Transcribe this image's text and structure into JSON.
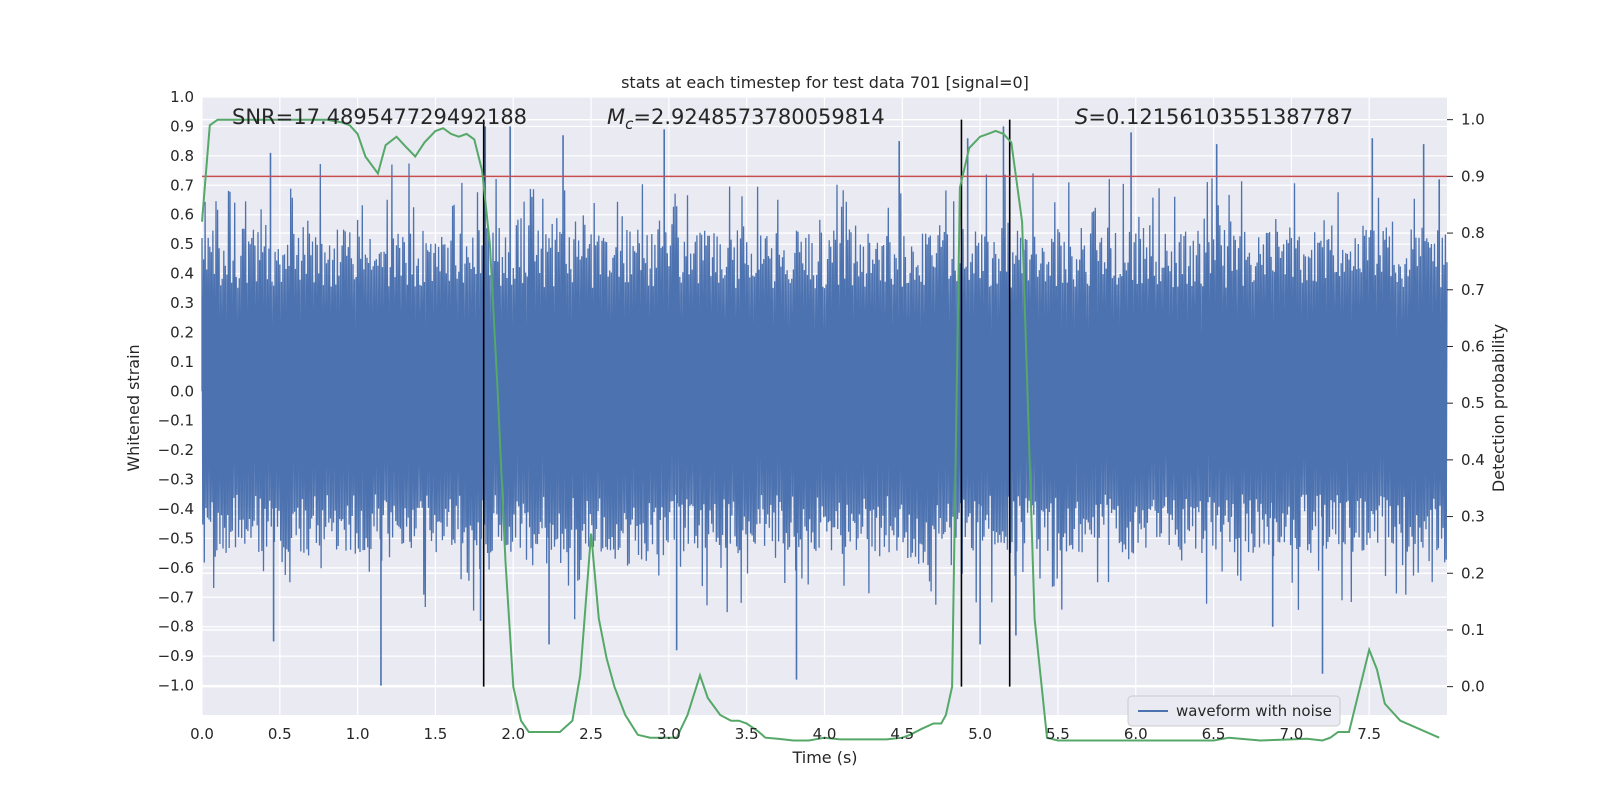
{
  "chart_data": {
    "type": "line",
    "title": "stats at each timestep for test data 701 [signal=0]",
    "xlabel": "Time (s)",
    "ylabel": "Whitened strain",
    "y2label": "Detection probability",
    "xlim": [
      0.0,
      8.0
    ],
    "ylim": [
      -1.1,
      1.0
    ],
    "y2lim": [
      -0.05,
      1.04
    ],
    "xticks": [
      "0.0",
      "0.5",
      "1.0",
      "1.5",
      "2.0",
      "2.5",
      "3.0",
      "3.5",
      "4.0",
      "4.5",
      "5.0",
      "5.5",
      "6.0",
      "6.5",
      "7.0",
      "7.5"
    ],
    "xtick_values": [
      0.0,
      0.5,
      1.0,
      1.5,
      2.0,
      2.5,
      3.0,
      3.5,
      4.0,
      4.5,
      5.0,
      5.5,
      6.0,
      6.5,
      7.0,
      7.5
    ],
    "yticks": [
      "1.0",
      "0.9",
      "0.8",
      "0.7",
      "0.6",
      "0.5",
      "0.4",
      "0.3",
      "0.2",
      "0.1",
      "0.0",
      "−0.1",
      "−0.2",
      "−0.3",
      "−0.4",
      "−0.5",
      "−0.6",
      "−0.7",
      "−0.8",
      "−0.9",
      "−1.0"
    ],
    "ytick_values": [
      1.0,
      0.9,
      0.8,
      0.7,
      0.6,
      0.5,
      0.4,
      0.3,
      0.2,
      0.1,
      0.0,
      -0.1,
      -0.2,
      -0.3,
      -0.4,
      -0.5,
      -0.6,
      -0.7,
      -0.8,
      -0.9,
      -1.0
    ],
    "y2ticks": [
      "1.0",
      "0.9",
      "0.8",
      "0.7",
      "0.6",
      "0.5",
      "0.4",
      "0.3",
      "0.2",
      "0.1",
      "0.0"
    ],
    "y2tick_values": [
      1.0,
      0.9,
      0.8,
      0.7,
      0.6,
      0.5,
      0.4,
      0.3,
      0.2,
      0.1,
      0.0
    ],
    "annotations": {
      "snr": "SNR=17.489547729492188",
      "mc_symbol": "M",
      "mc_subscript": "c",
      "mc_value": "=2.9248573780059814",
      "s_symbol": "S",
      "s_value": "=0.12156103551387787"
    },
    "threshold": {
      "value": 0.9,
      "axis": "y2",
      "color": "#c44e52"
    },
    "event_markers_x": [
      1.81,
      4.88,
      5.19
    ],
    "waveform": {
      "name": "waveform with noise",
      "color": "#4c72b0",
      "core_amplitude": 0.35,
      "max_amplitude": 0.99,
      "peaks": [
        {
          "t": 0.44,
          "v": 0.81
        },
        {
          "t": 0.46,
          "v": -0.85
        },
        {
          "t": 1.15,
          "v": -1.0
        },
        {
          "t": 1.82,
          "v": 0.9
        },
        {
          "t": 1.79,
          "v": -0.78
        },
        {
          "t": 1.98,
          "v": 0.9
        },
        {
          "t": 2.23,
          "v": -0.86
        },
        {
          "t": 2.32,
          "v": 0.87
        },
        {
          "t": 2.97,
          "v": 0.89
        },
        {
          "t": 3.05,
          "v": -0.88
        },
        {
          "t": 3.82,
          "v": -0.98
        },
        {
          "t": 4.48,
          "v": 0.85
        },
        {
          "t": 4.92,
          "v": 0.86
        },
        {
          "t": 5.0,
          "v": -0.86
        },
        {
          "t": 5.15,
          "v": 0.9
        },
        {
          "t": 5.23,
          "v": -0.83
        },
        {
          "t": 5.97,
          "v": 0.88
        },
        {
          "t": 6.52,
          "v": 0.84
        },
        {
          "t": 6.88,
          "v": -0.8
        },
        {
          "t": 7.2,
          "v": -0.96
        },
        {
          "t": 7.52,
          "v": 0.86
        },
        {
          "t": 7.85,
          "v": 0.84
        },
        {
          "t": 7.95,
          "v": 0.72
        }
      ]
    },
    "probability": {
      "color": "#55a868",
      "x": [
        0.0,
        0.05,
        0.1,
        0.2,
        0.3,
        0.4,
        0.5,
        0.6,
        0.7,
        0.8,
        0.9,
        0.95,
        1.0,
        1.05,
        1.13,
        1.18,
        1.25,
        1.3,
        1.37,
        1.43,
        1.5,
        1.55,
        1.6,
        1.65,
        1.7,
        1.75,
        1.8,
        1.85,
        1.9,
        1.95,
        2.0,
        2.05,
        2.1,
        2.15,
        2.2,
        2.25,
        2.3,
        2.38,
        2.43,
        2.5,
        2.55,
        2.6,
        2.65,
        2.72,
        2.8,
        2.88,
        2.95,
        3.0,
        3.05,
        3.12,
        3.2,
        3.25,
        3.33,
        3.4,
        3.45,
        3.5,
        3.57,
        3.62,
        3.7,
        3.8,
        3.9,
        4.0,
        4.1,
        4.2,
        4.3,
        4.4,
        4.5,
        4.55,
        4.62,
        4.7,
        4.75,
        4.78,
        4.82,
        4.87,
        4.93,
        5.0,
        5.05,
        5.1,
        5.15,
        5.2,
        5.27,
        5.35,
        5.43,
        5.5,
        5.7,
        6.0,
        6.3,
        6.5,
        6.6,
        6.8,
        7.0,
        7.1,
        7.2,
        7.25,
        7.3,
        7.37,
        7.5,
        7.55,
        7.6,
        7.7,
        7.95
      ],
      "y": [
        0.82,
        0.99,
        1.0,
        1.0,
        1.0,
        1.0,
        1.0,
        1.0,
        1.0,
        1.0,
        0.995,
        0.99,
        0.975,
        0.935,
        0.905,
        0.955,
        0.97,
        0.955,
        0.935,
        0.96,
        0.98,
        0.985,
        0.975,
        0.97,
        0.975,
        0.965,
        0.91,
        0.78,
        0.52,
        0.22,
        0.0,
        -0.06,
        -0.08,
        -0.08,
        -0.08,
        -0.08,
        -0.08,
        -0.06,
        0.02,
        0.27,
        0.12,
        0.05,
        0.0,
        -0.05,
        -0.085,
        -0.09,
        -0.09,
        -0.09,
        -0.09,
        -0.05,
        0.02,
        -0.02,
        -0.05,
        -0.06,
        -0.06,
        -0.065,
        -0.078,
        -0.09,
        -0.092,
        -0.095,
        -0.095,
        -0.09,
        -0.093,
        -0.093,
        -0.093,
        -0.093,
        -0.09,
        -0.085,
        -0.075,
        -0.065,
        -0.065,
        -0.05,
        0.0,
        0.88,
        0.95,
        0.97,
        0.975,
        0.98,
        0.975,
        0.96,
        0.82,
        0.12,
        -0.09,
        -0.095,
        -0.095,
        -0.095,
        -0.095,
        -0.095,
        -0.09,
        -0.095,
        -0.093,
        -0.092,
        -0.095,
        -0.09,
        -0.08,
        -0.08,
        0.065,
        0.03,
        -0.03,
        -0.06,
        -0.09
      ]
    }
  }
}
